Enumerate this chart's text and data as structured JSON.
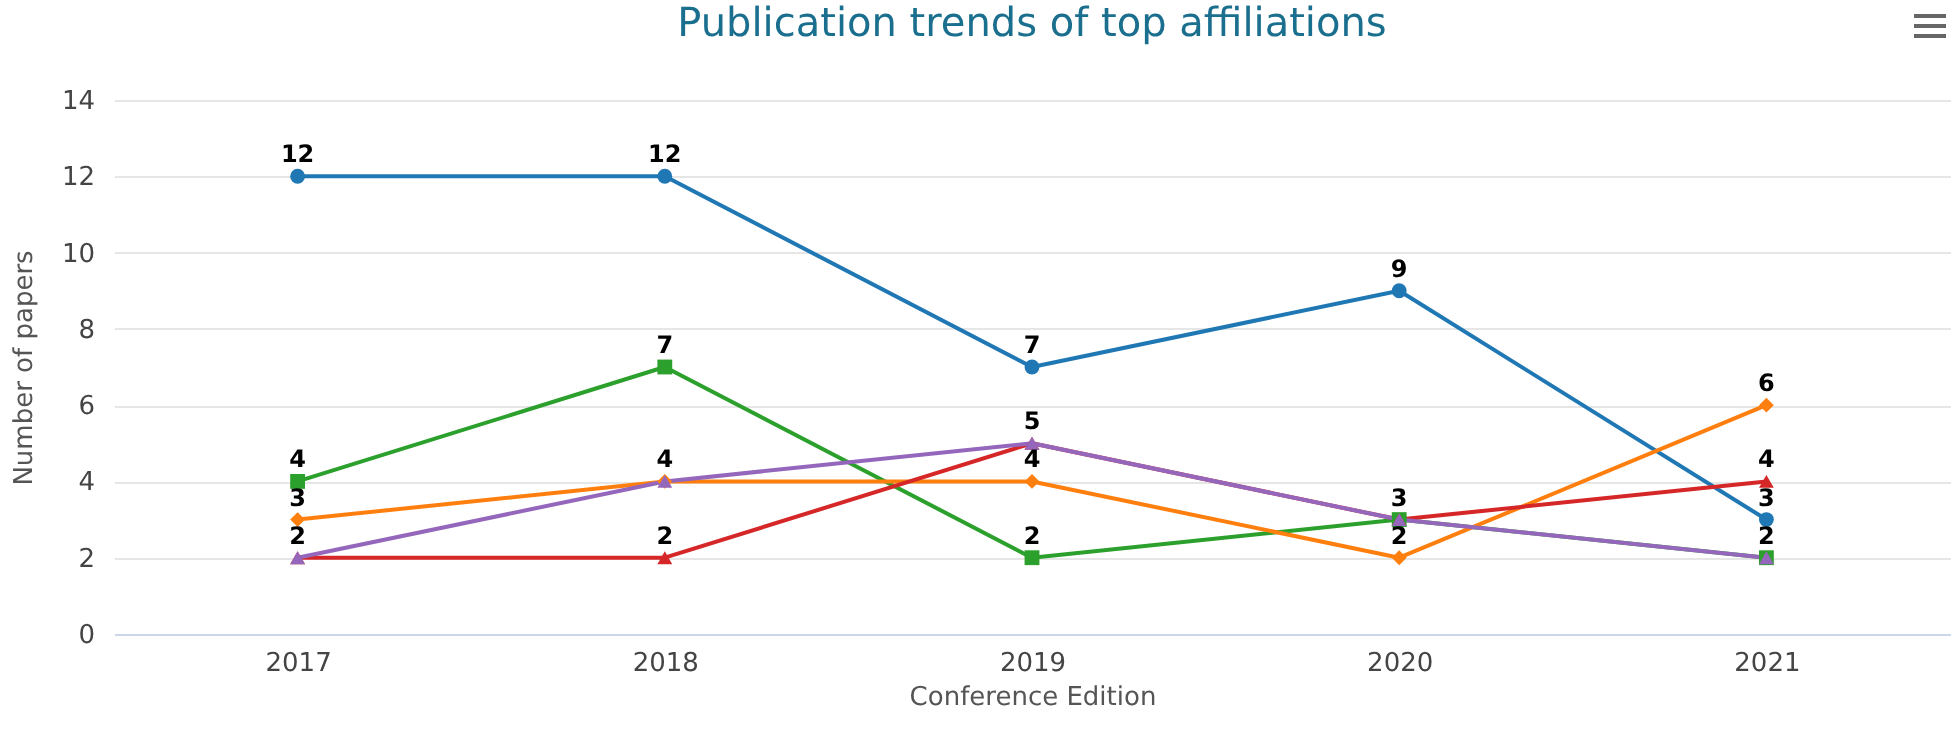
{
  "chart_data": {
    "type": "line",
    "title": "Publication trends of top affiliations",
    "xlabel": "Conference Edition",
    "ylabel": "Number of papers",
    "categories": [
      "2017",
      "2018",
      "2019",
      "2020",
      "2021"
    ],
    "series": [
      {
        "color": "#1f77b4",
        "marker": "circle",
        "values": [
          12,
          12,
          7,
          9,
          3
        ],
        "value_labels": [
          "12",
          "12",
          "7",
          "9",
          "3"
        ]
      },
      {
        "color": "#2ca02c",
        "marker": "square",
        "values": [
          4,
          7,
          2,
          3,
          2
        ],
        "value_labels": [
          "4",
          "7",
          "2",
          null,
          null
        ]
      },
      {
        "color": "#ff7f0e",
        "marker": "diamond",
        "values": [
          3,
          4,
          4,
          2,
          6
        ],
        "value_labels": [
          "3",
          null,
          "4",
          "2",
          "6"
        ]
      },
      {
        "color": "#d62728",
        "marker": "triangle",
        "values": [
          2,
          2,
          5,
          3,
          4
        ],
        "value_labels": [
          null,
          "2",
          null,
          "3",
          "4"
        ]
      },
      {
        "color": "#9467bd",
        "marker": "triangle",
        "values": [
          2,
          4,
          5,
          3,
          2
        ],
        "value_labels": [
          "2",
          "4",
          "5",
          null,
          "2"
        ]
      }
    ],
    "ylim": [
      0,
      14
    ],
    "yticks": [
      0,
      2,
      4,
      6,
      8,
      10,
      12,
      14
    ],
    "grid": "y",
    "legend": false
  }
}
